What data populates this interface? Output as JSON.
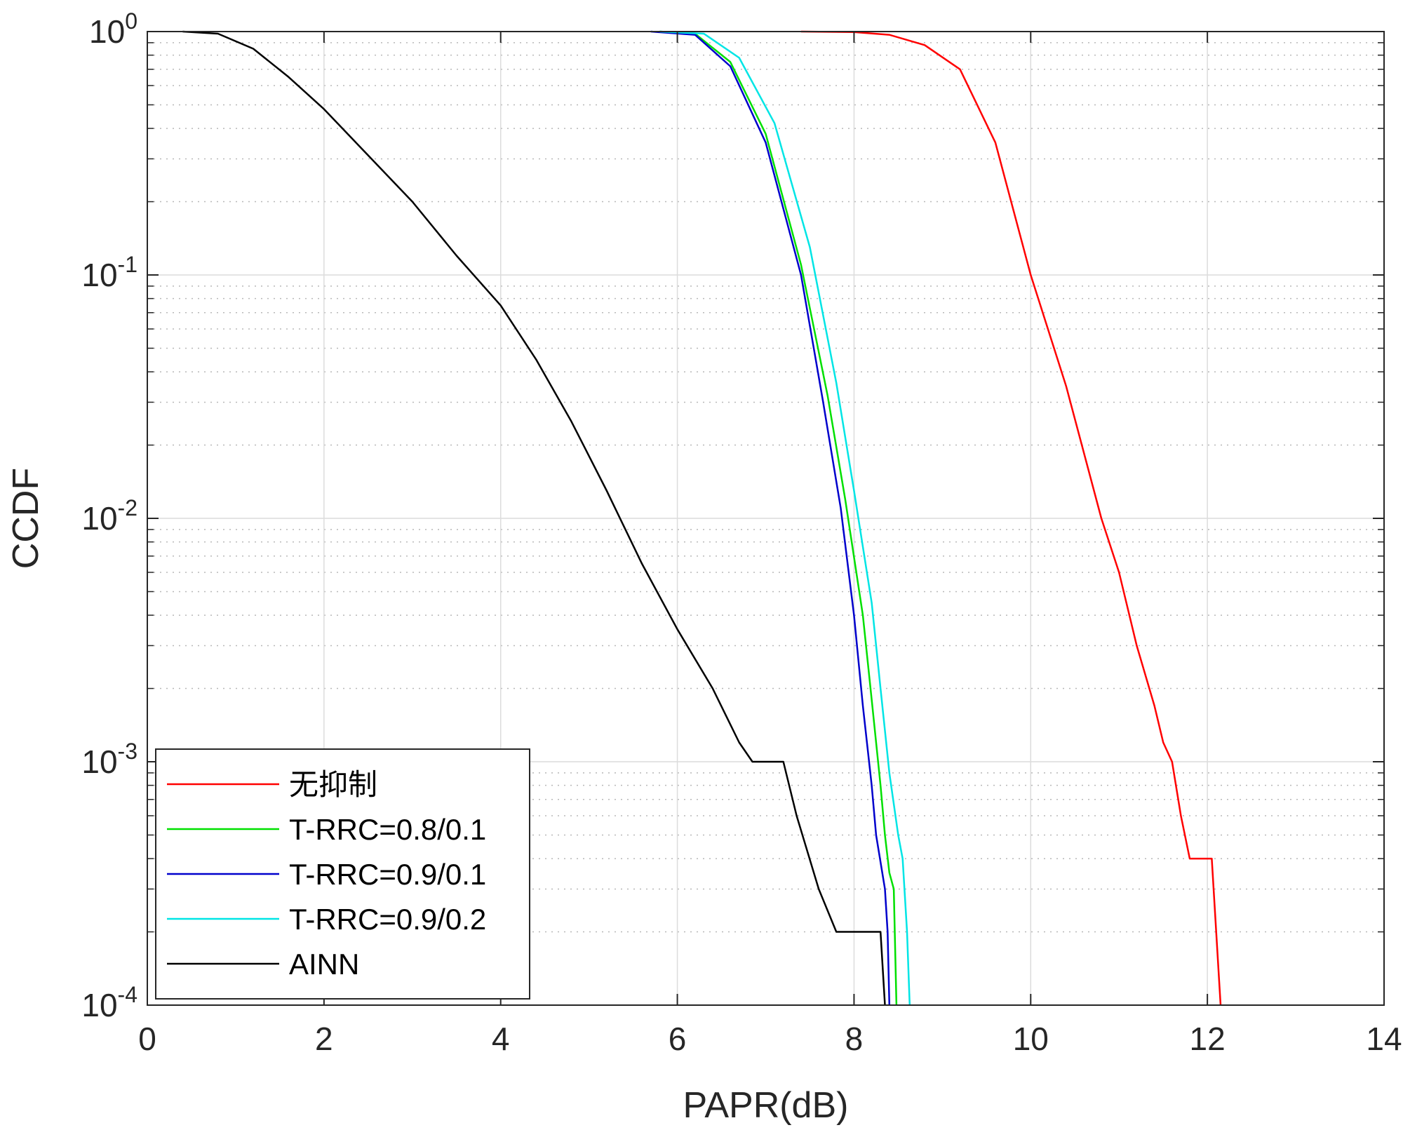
{
  "chart_data": {
    "type": "line",
    "xlabel": "PAPR(dB)",
    "ylabel": "CCDF",
    "xlim": [
      0,
      14
    ],
    "ylim": [
      0.0001,
      1
    ],
    "yscale": "log",
    "grid": true,
    "minor_grid": true,
    "legend_position": "bottom-left",
    "x_ticks": [
      0,
      2,
      4,
      6,
      8,
      10,
      12,
      14
    ],
    "y_ticks": [
      {
        "base": "10",
        "exp": "0",
        "value": 1
      },
      {
        "base": "10",
        "exp": "-1",
        "value": 0.1
      },
      {
        "base": "10",
        "exp": "-2",
        "value": 0.01
      },
      {
        "base": "10",
        "exp": "-3",
        "value": 0.001
      },
      {
        "base": "10",
        "exp": "-4",
        "value": 0.0001
      }
    ],
    "series": [
      {
        "name": "无抑制",
        "color": "#ff0000",
        "points": [
          [
            7.4,
            1.0
          ],
          [
            8.0,
            0.995
          ],
          [
            8.4,
            0.97
          ],
          [
            8.8,
            0.88
          ],
          [
            9.2,
            0.7
          ],
          [
            9.6,
            0.35
          ],
          [
            10.0,
            0.1
          ],
          [
            10.4,
            0.035
          ],
          [
            10.8,
            0.01
          ],
          [
            11.0,
            0.006
          ],
          [
            11.2,
            0.003
          ],
          [
            11.4,
            0.0017
          ],
          [
            11.5,
            0.0012
          ],
          [
            11.6,
            0.001
          ],
          [
            11.7,
            0.0006
          ],
          [
            11.8,
            0.0004
          ],
          [
            12.05,
            0.0004
          ],
          [
            12.1,
            0.0002
          ],
          [
            12.15,
            0.0001
          ]
        ]
      },
      {
        "name": "T-RRC=0.8/0.1",
        "color": "#00e000",
        "points": [
          [
            5.8,
            1.0
          ],
          [
            6.2,
            0.98
          ],
          [
            6.6,
            0.75
          ],
          [
            7.0,
            0.38
          ],
          [
            7.4,
            0.11
          ],
          [
            7.7,
            0.032
          ],
          [
            7.9,
            0.012
          ],
          [
            8.1,
            0.004
          ],
          [
            8.2,
            0.0018
          ],
          [
            8.3,
            0.0008
          ],
          [
            8.35,
            0.0005
          ],
          [
            8.4,
            0.00035
          ],
          [
            8.45,
            0.0003
          ],
          [
            8.48,
            0.0001
          ]
        ]
      },
      {
        "name": "T-RRC=0.9/0.1",
        "color": "#0000cc",
        "points": [
          [
            5.7,
            1.0
          ],
          [
            6.2,
            0.97
          ],
          [
            6.6,
            0.72
          ],
          [
            7.0,
            0.35
          ],
          [
            7.4,
            0.1
          ],
          [
            7.65,
            0.03
          ],
          [
            7.85,
            0.011
          ],
          [
            8.0,
            0.004
          ],
          [
            8.1,
            0.0017
          ],
          [
            8.2,
            0.0008
          ],
          [
            8.25,
            0.0005
          ],
          [
            8.35,
            0.0003
          ],
          [
            8.38,
            0.0002
          ],
          [
            8.4,
            0.0001
          ]
        ]
      },
      {
        "name": "T-RRC=0.9/0.2",
        "color": "#00e5e5",
        "points": [
          [
            5.8,
            1.0
          ],
          [
            6.3,
            0.98
          ],
          [
            6.7,
            0.78
          ],
          [
            7.1,
            0.42
          ],
          [
            7.5,
            0.13
          ],
          [
            7.8,
            0.036
          ],
          [
            8.0,
            0.013
          ],
          [
            8.2,
            0.0045
          ],
          [
            8.3,
            0.002
          ],
          [
            8.4,
            0.0009
          ],
          [
            8.5,
            0.0005
          ],
          [
            8.55,
            0.0004
          ],
          [
            8.6,
            0.0002
          ],
          [
            8.63,
            0.0001
          ]
        ]
      },
      {
        "name": "AINN",
        "color": "#000000",
        "points": [
          [
            0.4,
            1.0
          ],
          [
            0.8,
            0.98
          ],
          [
            1.2,
            0.85
          ],
          [
            1.6,
            0.65
          ],
          [
            2.0,
            0.48
          ],
          [
            2.5,
            0.31
          ],
          [
            3.0,
            0.2
          ],
          [
            3.5,
            0.12
          ],
          [
            4.0,
            0.075
          ],
          [
            4.4,
            0.045
          ],
          [
            4.8,
            0.025
          ],
          [
            5.2,
            0.013
          ],
          [
            5.6,
            0.0065
          ],
          [
            6.0,
            0.0035
          ],
          [
            6.4,
            0.002
          ],
          [
            6.7,
            0.0012
          ],
          [
            6.85,
            0.001
          ],
          [
            7.2,
            0.001
          ],
          [
            7.35,
            0.0006
          ],
          [
            7.6,
            0.0003
          ],
          [
            7.8,
            0.0002
          ],
          [
            8.3,
            0.0002
          ],
          [
            8.35,
            0.0001
          ]
        ]
      }
    ]
  }
}
